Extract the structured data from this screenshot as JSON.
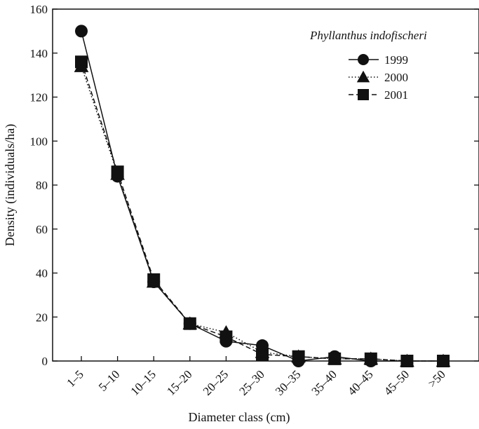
{
  "chart_data": {
    "type": "line",
    "title": "",
    "xlabel": "Diameter class (cm)",
    "ylabel": "Density (individuals/ha)",
    "legend_title": "Phyllanthus indofischeri",
    "legend_placement": "top-right",
    "grid": false,
    "ylim": [
      0,
      160
    ],
    "yticks": [
      0,
      20,
      40,
      60,
      80,
      100,
      120,
      140,
      160
    ],
    "categories": [
      "1–5",
      "5–10",
      "10–15",
      "15–20",
      "20–25",
      "25–30",
      "30–35",
      "35–40",
      "40–45",
      "45–50",
      ">50"
    ],
    "series": [
      {
        "name": "1999",
        "marker": "circle",
        "line_style": "solid",
        "color": "#111111",
        "values": [
          150,
          84,
          36,
          17,
          9,
          7,
          0,
          2,
          0,
          0,
          0
        ]
      },
      {
        "name": "2000",
        "marker": "triangle",
        "line_style": "dotted",
        "color": "#111111",
        "values": [
          134,
          85,
          36,
          17,
          13,
          4,
          2,
          1,
          1,
          0,
          0
        ]
      },
      {
        "name": "2001",
        "marker": "square",
        "line_style": "dashed",
        "color": "#111111",
        "values": [
          136,
          86,
          37,
          17,
          11,
          3,
          2,
          1,
          1,
          0,
          0
        ]
      }
    ]
  }
}
